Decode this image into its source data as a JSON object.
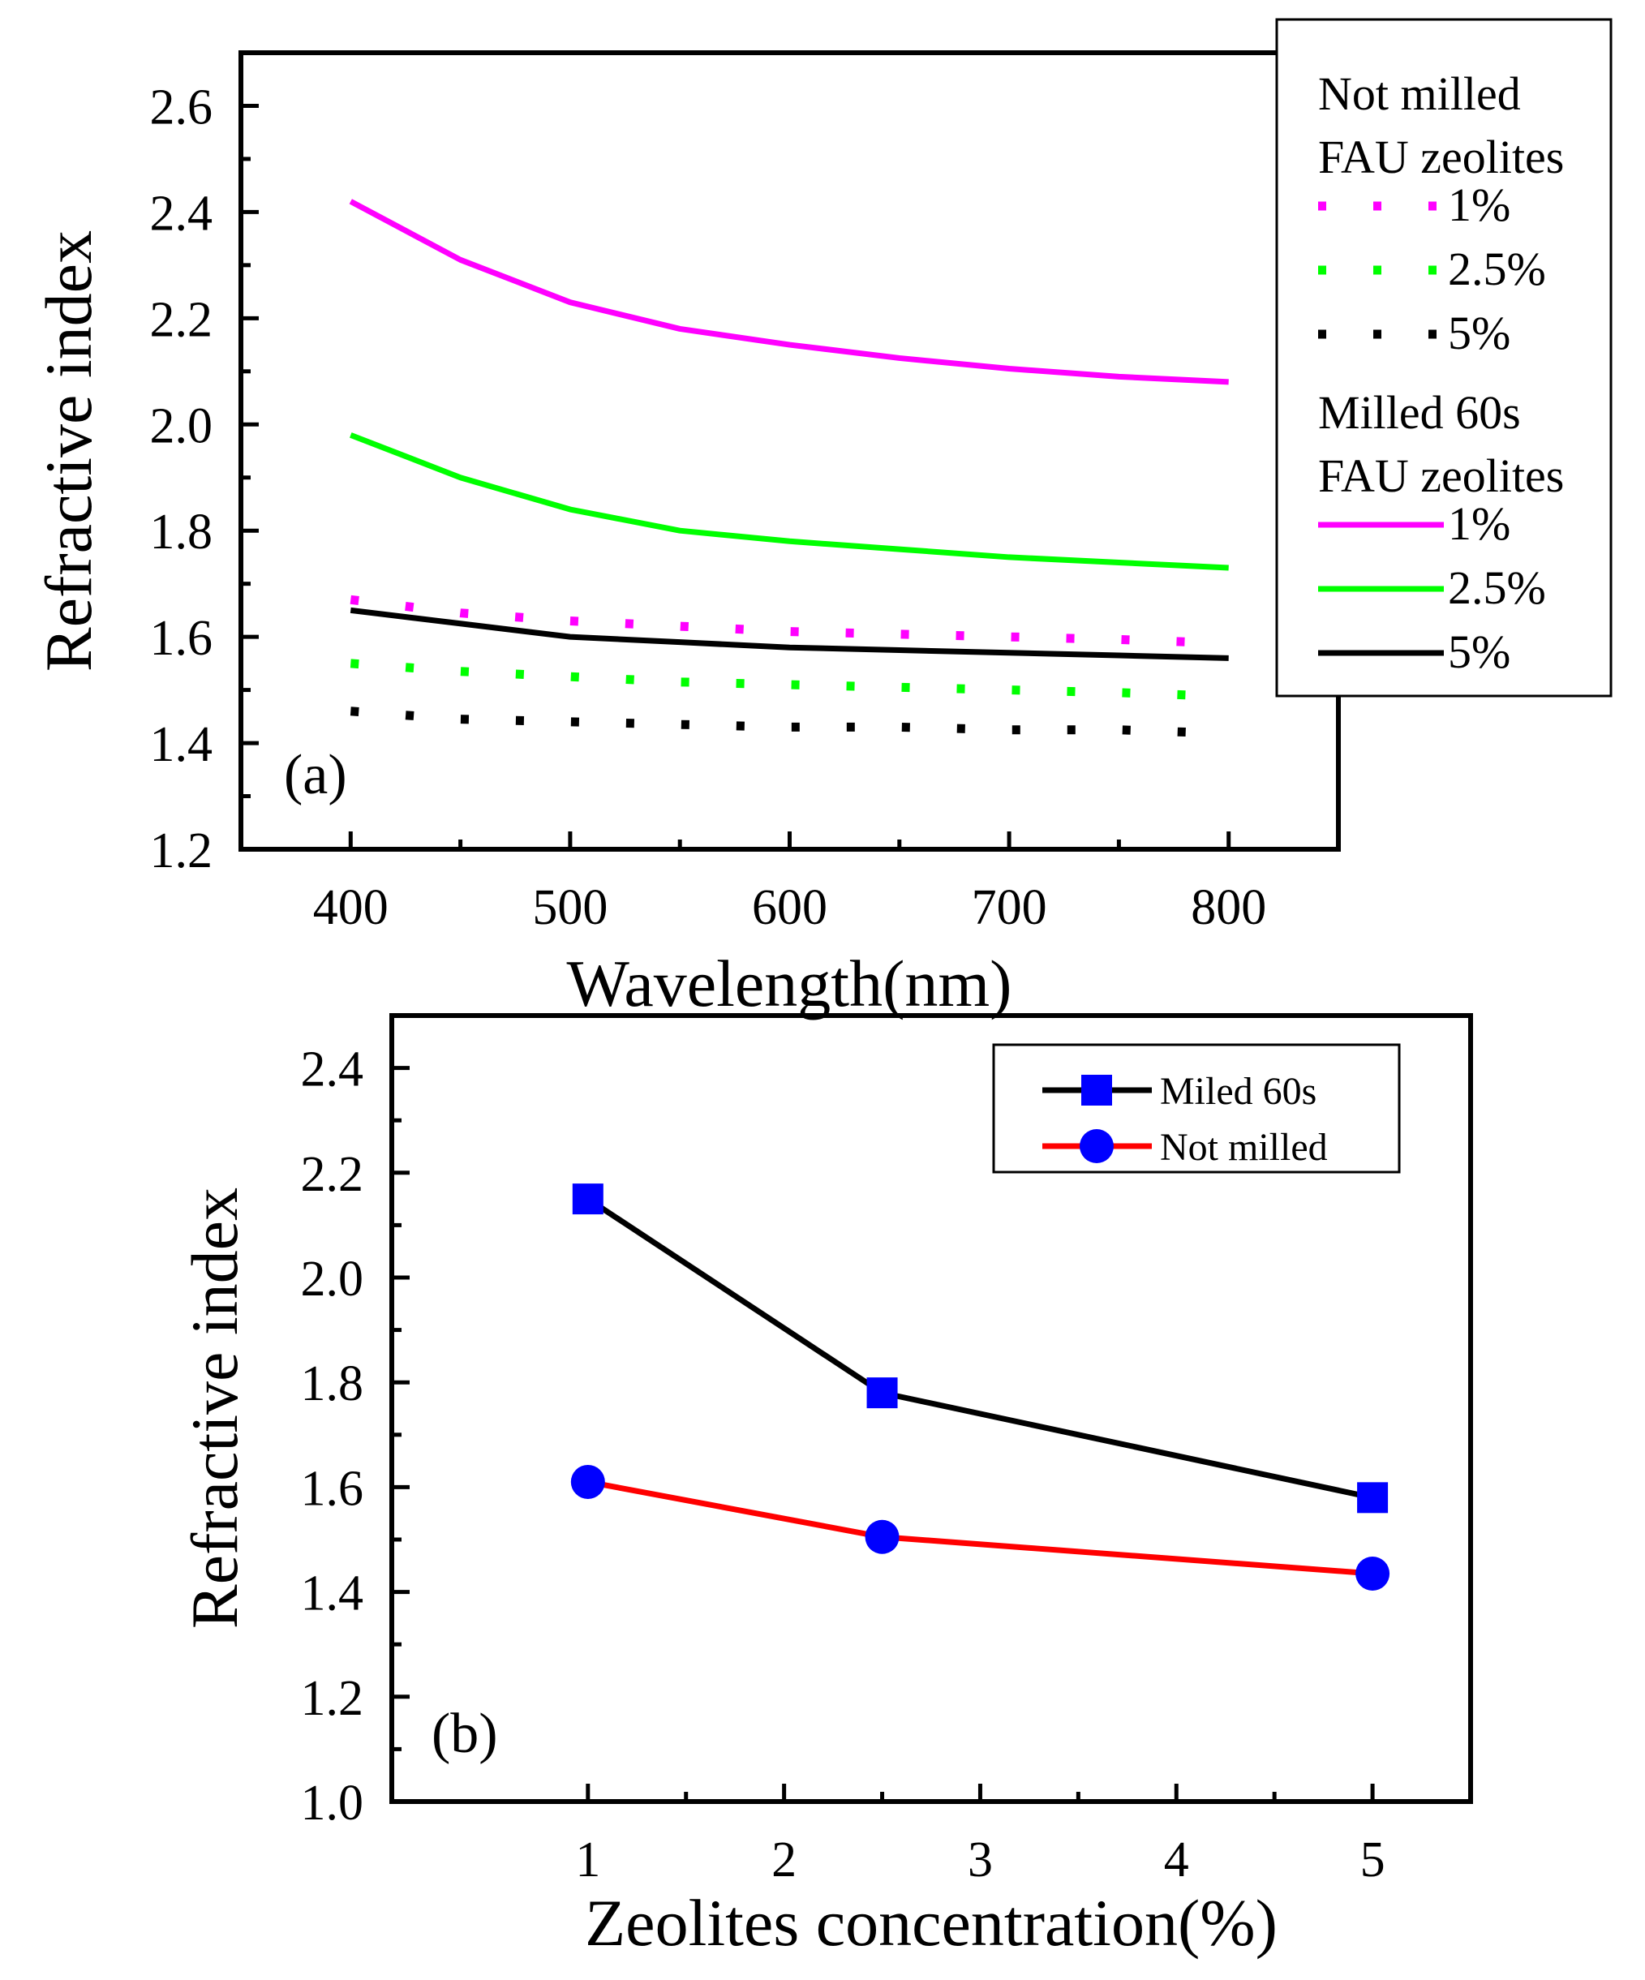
{
  "chart_data": [
    {
      "panel": "(a)",
      "type": "line",
      "xlabel": "Wavelength(nm)",
      "ylabel": "Refractive index",
      "xlim": [
        350,
        850
      ],
      "ylim": [
        1.2,
        2.7
      ],
      "x_ticks": [
        "400",
        "500",
        "600",
        "700",
        "800"
      ],
      "y_ticks": [
        "1.2",
        "1.4",
        "1.6",
        "1.8",
        "2.0",
        "2.2",
        "2.4",
        "2.6"
      ],
      "grid": false,
      "legend_placement": "top-right, outside frame",
      "legend": {
        "group1_line1": "Not milled",
        "group1_line2": "FAU zeolites",
        "group2_line1": "Milled 60s",
        "group2_line2": "FAU zeolites"
      },
      "series": [
        {
          "group": "Not milled FAU zeolites",
          "name": "1%",
          "style": "dotted",
          "color": "#ff00ff",
          "x": [
            400,
            450,
            500,
            550,
            600,
            650,
            700,
            750,
            785
          ],
          "y": [
            1.67,
            1.645,
            1.63,
            1.62,
            1.61,
            1.605,
            1.6,
            1.595,
            1.59
          ]
        },
        {
          "group": "Not milled FAU zeolites",
          "name": "2.5%",
          "style": "dotted",
          "color": "#00ff00",
          "x": [
            400,
            450,
            500,
            550,
            600,
            650,
            700,
            750,
            785
          ],
          "y": [
            1.55,
            1.535,
            1.525,
            1.515,
            1.51,
            1.505,
            1.5,
            1.495,
            1.49
          ]
        },
        {
          "group": "Not milled FAU zeolites",
          "name": "5%",
          "style": "dotted",
          "color": "#000000",
          "x": [
            400,
            450,
            500,
            550,
            600,
            650,
            700,
            750,
            785
          ],
          "y": [
            1.46,
            1.445,
            1.44,
            1.435,
            1.43,
            1.43,
            1.425,
            1.425,
            1.42
          ]
        },
        {
          "group": "Milled 60s FAU zeolites",
          "name": "1%",
          "style": "solid",
          "color": "#ff00ff",
          "x": [
            400,
            450,
            500,
            550,
            600,
            650,
            700,
            750,
            800
          ],
          "y": [
            2.42,
            2.31,
            2.23,
            2.18,
            2.15,
            2.125,
            2.105,
            2.09,
            2.08
          ]
        },
        {
          "group": "Milled 60s FAU zeolites",
          "name": "2.5%",
          "style": "solid",
          "color": "#00ff00",
          "x": [
            400,
            450,
            500,
            550,
            600,
            650,
            700,
            750,
            800
          ],
          "y": [
            1.98,
            1.9,
            1.84,
            1.8,
            1.78,
            1.765,
            1.75,
            1.74,
            1.73
          ]
        },
        {
          "group": "Milled 60s FAU zeolites",
          "name": "5%",
          "style": "solid",
          "color": "#000000",
          "x": [
            400,
            450,
            500,
            550,
            600,
            650,
            700,
            750,
            800
          ],
          "y": [
            1.65,
            1.625,
            1.6,
            1.59,
            1.58,
            1.575,
            1.57,
            1.565,
            1.56
          ]
        }
      ]
    },
    {
      "panel": "(b)",
      "type": "line",
      "xlabel": "Zeolites concentration(%)",
      "ylabel": "Refractive index",
      "xlim": [
        0.0,
        5.5
      ],
      "ylim": [
        1.0,
        2.5
      ],
      "x_ticks": [
        "1",
        "2",
        "3",
        "4",
        "5"
      ],
      "y_ticks": [
        "1.0",
        "1.2",
        "1.4",
        "1.6",
        "1.8",
        "2.0",
        "2.2",
        "2.4"
      ],
      "grid": false,
      "legend_placement": "top-right",
      "series": [
        {
          "name": "Miled 60s",
          "line_color": "#000000",
          "marker": "square",
          "marker_color": "#0000ff",
          "x": [
            1,
            2.5,
            5
          ],
          "y": [
            2.15,
            1.78,
            1.58
          ]
        },
        {
          "name": "Not milled",
          "line_color": "#ff0000",
          "marker": "circle",
          "marker_color": "#0000ff",
          "x": [
            1,
            2.5,
            5
          ],
          "y": [
            1.61,
            1.505,
            1.435
          ]
        }
      ]
    }
  ]
}
